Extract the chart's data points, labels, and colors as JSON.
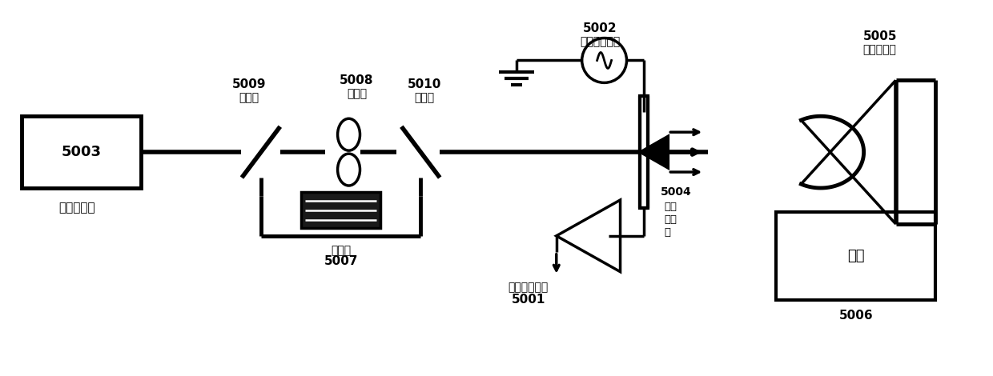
{
  "bg_color": "#ffffff",
  "line_color": "#000000",
  "lw": 2.5,
  "fig_w": 12.4,
  "fig_h": 4.7,
  "labels": {
    "5003_box": "5003",
    "5003_label": "飞秒激光器",
    "5009_num": "5009",
    "5009_label": "分束镜",
    "5008_num": "5008",
    "5008_label": "斩波器",
    "5010_num": "5010",
    "5010_label": "合束镜",
    "5002_num": "5002",
    "5002_label": "偏置电压电路",
    "5005_num": "5005",
    "5005_label": "抛物反射镜",
    "5007_label": "延迟线",
    "5007_num": "5007",
    "5001_label": "信号输出电路",
    "5001_num": "5001",
    "5004_num": "5004",
    "5004_label": "太赫\n兹天\n线",
    "5006_label": "样品",
    "5006_num": "5006"
  }
}
